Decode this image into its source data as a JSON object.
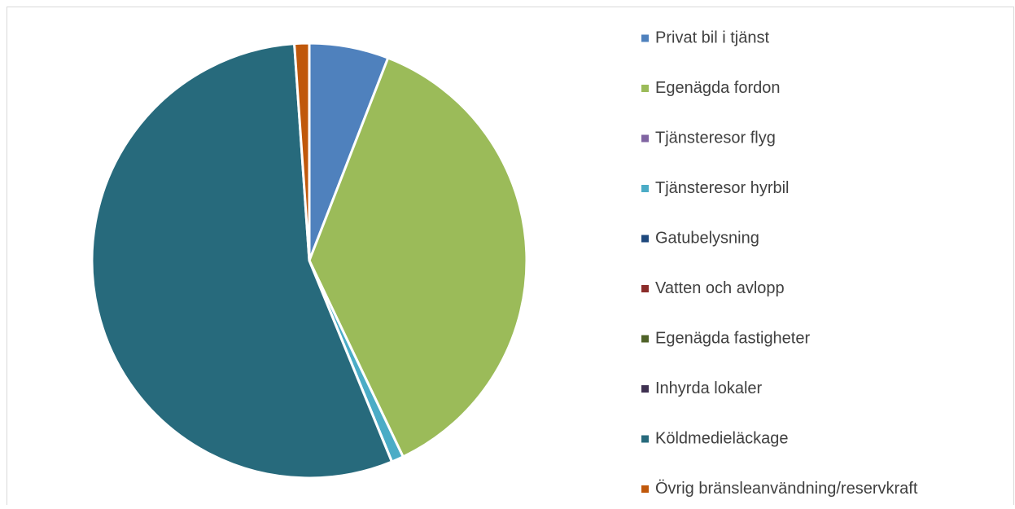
{
  "chart_data": {
    "type": "pie",
    "categories": [
      "Privat bil i tjänst",
      "Egenägda fordon",
      "Tjänsteresor flyg",
      "Tjänsteresor hyrbil",
      "Gatubelysning",
      "Vatten och avlopp",
      "Egenägda fastigheter",
      "Inhyrda lokaler",
      "Köldmedieläckage",
      "Övrig bränsleanvändning/reservkraft"
    ],
    "values": [
      5.9,
      37,
      0,
      0.9,
      0,
      0,
      0,
      0,
      55.1,
      1.1
    ],
    "colors": [
      "#4f81bd",
      "#9bbb59",
      "#8064a2",
      "#4bacc6",
      "#1f497d",
      "#8b2c2a",
      "#4f6228",
      "#3f3151",
      "#276a7c",
      "#c0580b"
    ],
    "legend": "right"
  }
}
